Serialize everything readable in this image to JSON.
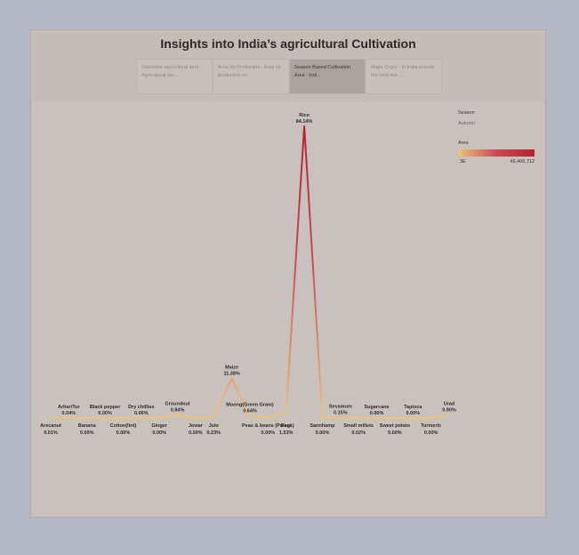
{
  "dashboard": {
    "title": "Insights into India’s agricultural Cultivation",
    "tabs": [
      {
        "label": "Statewise agricultural land : Agricultural lan...",
        "active": false
      },
      {
        "label": "Area Vs Production : Area vs production re...",
        "active": false
      },
      {
        "label": "Season Based Cultivation Area : Indi...",
        "active": true
      },
      {
        "label": "Major Crops : In India include the food rice ...",
        "active": false
      }
    ]
  },
  "legend": {
    "season_title": "Season",
    "season_value": "Autumn",
    "area_title": "Area",
    "min_label": "3E",
    "max_label": "49,406,712",
    "colors": {
      "low": "#e9c47a",
      "mid": "#c94a52",
      "high": "#b8202f"
    }
  },
  "chart_data": {
    "type": "line",
    "title": "",
    "xlabel": "",
    "ylabel": "",
    "categories": [
      "Arecanut",
      "Arhar/Tur",
      "Banana",
      "Black pepper",
      "Cotton(lint)",
      "Dry chillies",
      "Ginger",
      "Groundnut",
      "Jowar",
      "Jute",
      "Maize",
      "Moong(Green Gram)",
      "Peas & beans (Pulses)",
      "Ragi",
      "Rice",
      "Sannhamp",
      "Sesamum",
      "Small millets",
      "Sugarcane",
      "Sweet potato",
      "Tapioca",
      "Turmeric",
      "Urad"
    ],
    "values": [
      0.01,
      0.04,
      0.0,
      0.0,
      0.0,
      0.06,
      0.0,
      0.84,
      0.0,
      0.23,
      11.38,
      0.64,
      0.0,
      1.53,
      84.14,
      0.0,
      0.15,
      0.02,
      0.0,
      0.0,
      0.0,
      0.0,
      0.9
    ],
    "value_labels": [
      "0.01%",
      "0.04%",
      "0.00%",
      "0.00%",
      "0.00%",
      "0.06%",
      "0.00%",
      "0.84%",
      "0.00%",
      "0.23%",
      "11.38%",
      "0.64%",
      "0.00%",
      "1.53%",
      "84.14%",
      "0.00%",
      "0.15%",
      "0.02%",
      "0.00%",
      "0.00%",
      "0.00%",
      "0.00%",
      "0.90%"
    ],
    "label_position": [
      "below",
      "above",
      "below",
      "above",
      "below",
      "above",
      "below",
      "above",
      "below",
      "below",
      "above",
      "above",
      "below",
      "below",
      "above",
      "below",
      "above",
      "below",
      "above",
      "below",
      "above",
      "below",
      "above"
    ],
    "ylim": [
      0,
      84.14
    ],
    "grid": false,
    "legend": "top-right"
  }
}
